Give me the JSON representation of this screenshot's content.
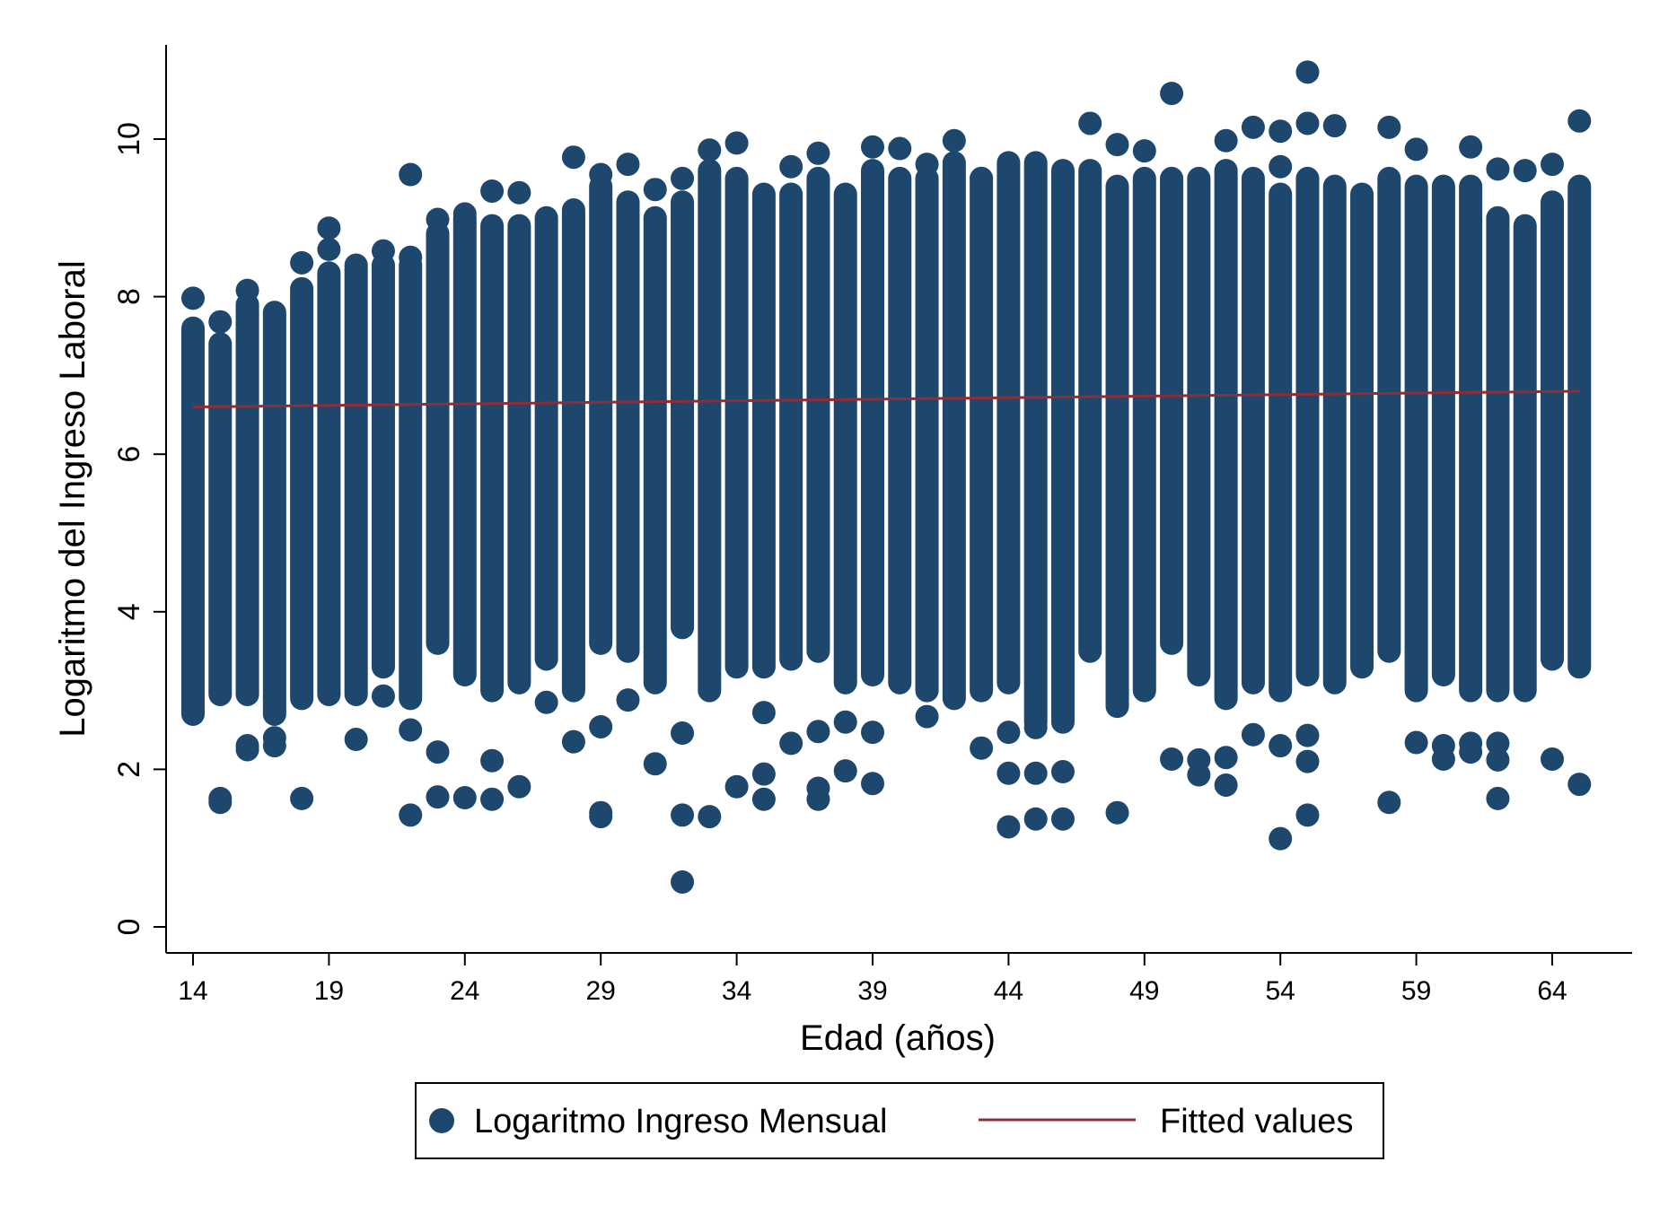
{
  "chart_data": {
    "type": "scatter",
    "xlabel": "Edad (años)",
    "ylabel": "Logaritmo del Ingreso Laboral",
    "xlim": [
      13,
      68
    ],
    "ylim": [
      -0.3,
      11.2
    ],
    "x_ticks": [
      14,
      19,
      24,
      29,
      34,
      39,
      44,
      49,
      54,
      59,
      64
    ],
    "y_ticks": [
      0,
      2,
      4,
      6,
      8,
      10
    ],
    "grid": false,
    "legend_position": "bottom",
    "colors": {
      "scatter": "#1d476d",
      "fit": "#8f2d36"
    },
    "series": [
      {
        "name": "Logaritmo Ingreso Mensual",
        "kind": "scatter",
        "bands": [
          {
            "age": 14,
            "low": 2.7,
            "high": 7.6
          },
          {
            "age": 15,
            "low": 2.95,
            "high": 7.4
          },
          {
            "age": 16,
            "low": 2.95,
            "high": 7.9
          },
          {
            "age": 17,
            "low": 2.7,
            "high": 7.8
          },
          {
            "age": 18,
            "low": 2.9,
            "high": 8.1
          },
          {
            "age": 19,
            "low": 2.95,
            "high": 8.3
          },
          {
            "age": 20,
            "low": 2.95,
            "high": 8.4
          },
          {
            "age": 21,
            "low": 3.3,
            "high": 8.4
          },
          {
            "age": 22,
            "low": 2.9,
            "high": 8.4
          },
          {
            "age": 23,
            "low": 3.6,
            "high": 8.8
          },
          {
            "age": 24,
            "low": 3.2,
            "high": 9.0
          },
          {
            "age": 25,
            "low": 3.0,
            "high": 8.9
          },
          {
            "age": 26,
            "low": 3.1,
            "high": 8.9
          },
          {
            "age": 27,
            "low": 3.4,
            "high": 9.0
          },
          {
            "age": 28,
            "low": 3.0,
            "high": 9.1
          },
          {
            "age": 29,
            "low": 3.6,
            "high": 9.4
          },
          {
            "age": 30,
            "low": 3.5,
            "high": 9.2
          },
          {
            "age": 31,
            "low": 3.1,
            "high": 9.0
          },
          {
            "age": 32,
            "low": 3.8,
            "high": 9.2
          },
          {
            "age": 33,
            "low": 3.0,
            "high": 9.6
          },
          {
            "age": 34,
            "low": 3.3,
            "high": 9.5
          },
          {
            "age": 35,
            "low": 3.3,
            "high": 9.3
          },
          {
            "age": 36,
            "low": 3.4,
            "high": 9.3
          },
          {
            "age": 37,
            "low": 3.5,
            "high": 9.5
          },
          {
            "age": 38,
            "low": 3.1,
            "high": 9.3
          },
          {
            "age": 39,
            "low": 3.2,
            "high": 9.6
          },
          {
            "age": 40,
            "low": 3.1,
            "high": 9.5
          },
          {
            "age": 41,
            "low": 3.0,
            "high": 9.5
          },
          {
            "age": 42,
            "low": 2.9,
            "high": 9.7
          },
          {
            "age": 43,
            "low": 3.0,
            "high": 9.5
          },
          {
            "age": 44,
            "low": 3.1,
            "high": 9.7
          },
          {
            "age": 45,
            "low": 2.6,
            "high": 9.7
          },
          {
            "age": 46,
            "low": 2.6,
            "high": 9.6
          },
          {
            "age": 47,
            "low": 3.5,
            "high": 9.6
          },
          {
            "age": 48,
            "low": 2.8,
            "high": 9.4
          },
          {
            "age": 49,
            "low": 3.0,
            "high": 9.5
          },
          {
            "age": 50,
            "low": 3.6,
            "high": 9.5
          },
          {
            "age": 51,
            "low": 3.2,
            "high": 9.5
          },
          {
            "age": 52,
            "low": 2.9,
            "high": 9.6
          },
          {
            "age": 53,
            "low": 3.1,
            "high": 9.5
          },
          {
            "age": 54,
            "low": 3.0,
            "high": 9.3
          },
          {
            "age": 55,
            "low": 3.2,
            "high": 9.5
          },
          {
            "age": 56,
            "low": 3.1,
            "high": 9.4
          },
          {
            "age": 57,
            "low": 3.3,
            "high": 9.3
          },
          {
            "age": 58,
            "low": 3.5,
            "high": 9.5
          },
          {
            "age": 59,
            "low": 3.0,
            "high": 9.4
          },
          {
            "age": 60,
            "low": 3.2,
            "high": 9.4
          },
          {
            "age": 61,
            "low": 3.0,
            "high": 9.4
          },
          {
            "age": 62,
            "low": 3.0,
            "high": 9.0
          },
          {
            "age": 63,
            "low": 3.0,
            "high": 8.9
          },
          {
            "age": 64,
            "low": 3.4,
            "high": 9.2
          },
          {
            "age": 65,
            "low": 3.3,
            "high": 9.4
          }
        ],
        "outliers": [
          [
            14,
            7.98
          ],
          [
            15,
            7.68
          ],
          [
            15,
            1.63
          ],
          [
            15,
            1.58
          ],
          [
            16,
            8.08
          ],
          [
            16,
            2.3
          ],
          [
            16,
            2.25
          ],
          [
            17,
            2.4
          ],
          [
            17,
            2.3
          ],
          [
            18,
            8.43
          ],
          [
            18,
            1.63
          ],
          [
            19,
            8.87
          ],
          [
            19,
            8.6
          ],
          [
            20,
            2.38
          ],
          [
            21,
            8.58
          ],
          [
            21,
            2.93
          ],
          [
            22,
            9.55
          ],
          [
            22,
            8.5
          ],
          [
            22,
            2.5
          ],
          [
            22,
            1.42
          ],
          [
            23,
            8.98
          ],
          [
            23,
            2.22
          ],
          [
            23,
            1.65
          ],
          [
            24,
            9.05
          ],
          [
            24,
            1.64
          ],
          [
            25,
            9.34
          ],
          [
            25,
            2.11
          ],
          [
            25,
            1.62
          ],
          [
            26,
            9.32
          ],
          [
            26,
            1.78
          ],
          [
            27,
            2.85
          ],
          [
            28,
            9.77
          ],
          [
            28,
            2.35
          ],
          [
            29,
            9.55
          ],
          [
            29,
            2.54
          ],
          [
            29,
            1.45
          ],
          [
            29,
            1.4
          ],
          [
            30,
            9.68
          ],
          [
            30,
            2.88
          ],
          [
            31,
            9.36
          ],
          [
            31,
            2.07
          ],
          [
            32,
            9.5
          ],
          [
            32,
            2.46
          ],
          [
            32,
            1.42
          ],
          [
            32,
            0.57
          ],
          [
            33,
            9.86
          ],
          [
            33,
            1.4
          ],
          [
            34,
            9.95
          ],
          [
            34,
            1.78
          ],
          [
            35,
            1.94
          ],
          [
            35,
            1.62
          ],
          [
            35,
            2.72
          ],
          [
            36,
            9.65
          ],
          [
            36,
            2.33
          ],
          [
            37,
            9.82
          ],
          [
            37,
            2.48
          ],
          [
            37,
            1.76
          ],
          [
            37,
            1.62
          ],
          [
            38,
            2.6
          ],
          [
            38,
            1.98
          ],
          [
            39,
            9.9
          ],
          [
            39,
            2.47
          ],
          [
            39,
            1.82
          ],
          [
            40,
            9.88
          ],
          [
            41,
            9.68
          ],
          [
            41,
            2.67
          ],
          [
            42,
            9.98
          ],
          [
            43,
            9.5
          ],
          [
            43,
            2.27
          ],
          [
            44,
            2.47
          ],
          [
            44,
            1.95
          ],
          [
            44,
            1.27
          ],
          [
            45,
            2.53
          ],
          [
            45,
            1.95
          ],
          [
            45,
            1.37
          ],
          [
            46,
            1.97
          ],
          [
            46,
            1.37
          ],
          [
            47,
            10.2
          ],
          [
            48,
            9.93
          ],
          [
            48,
            1.45
          ],
          [
            49,
            9.85
          ],
          [
            50,
            10.58
          ],
          [
            50,
            2.13
          ],
          [
            51,
            2.12
          ],
          [
            51,
            1.93
          ],
          [
            52,
            9.98
          ],
          [
            52,
            2.15
          ],
          [
            52,
            1.8
          ],
          [
            53,
            10.15
          ],
          [
            53,
            2.44
          ],
          [
            54,
            10.1
          ],
          [
            54,
            9.65
          ],
          [
            54,
            2.3
          ],
          [
            54,
            1.12
          ],
          [
            55,
            10.85
          ],
          [
            55,
            10.2
          ],
          [
            55,
            2.43
          ],
          [
            55,
            2.1
          ],
          [
            55,
            1.42
          ],
          [
            56,
            10.17
          ],
          [
            58,
            10.15
          ],
          [
            58,
            1.58
          ],
          [
            59,
            9.87
          ],
          [
            59,
            2.34
          ],
          [
            60,
            2.3
          ],
          [
            60,
            2.13
          ],
          [
            61,
            9.9
          ],
          [
            61,
            2.33
          ],
          [
            61,
            2.22
          ],
          [
            62,
            9.62
          ],
          [
            62,
            2.33
          ],
          [
            62,
            2.12
          ],
          [
            62,
            1.63
          ],
          [
            63,
            9.6
          ],
          [
            64,
            9.68
          ],
          [
            64,
            2.13
          ],
          [
            65,
            10.23
          ],
          [
            65,
            1.81
          ]
        ]
      },
      {
        "name": "Fitted values",
        "kind": "line",
        "x": [
          14,
          65
        ],
        "y": [
          6.6,
          6.8
        ]
      }
    ]
  }
}
